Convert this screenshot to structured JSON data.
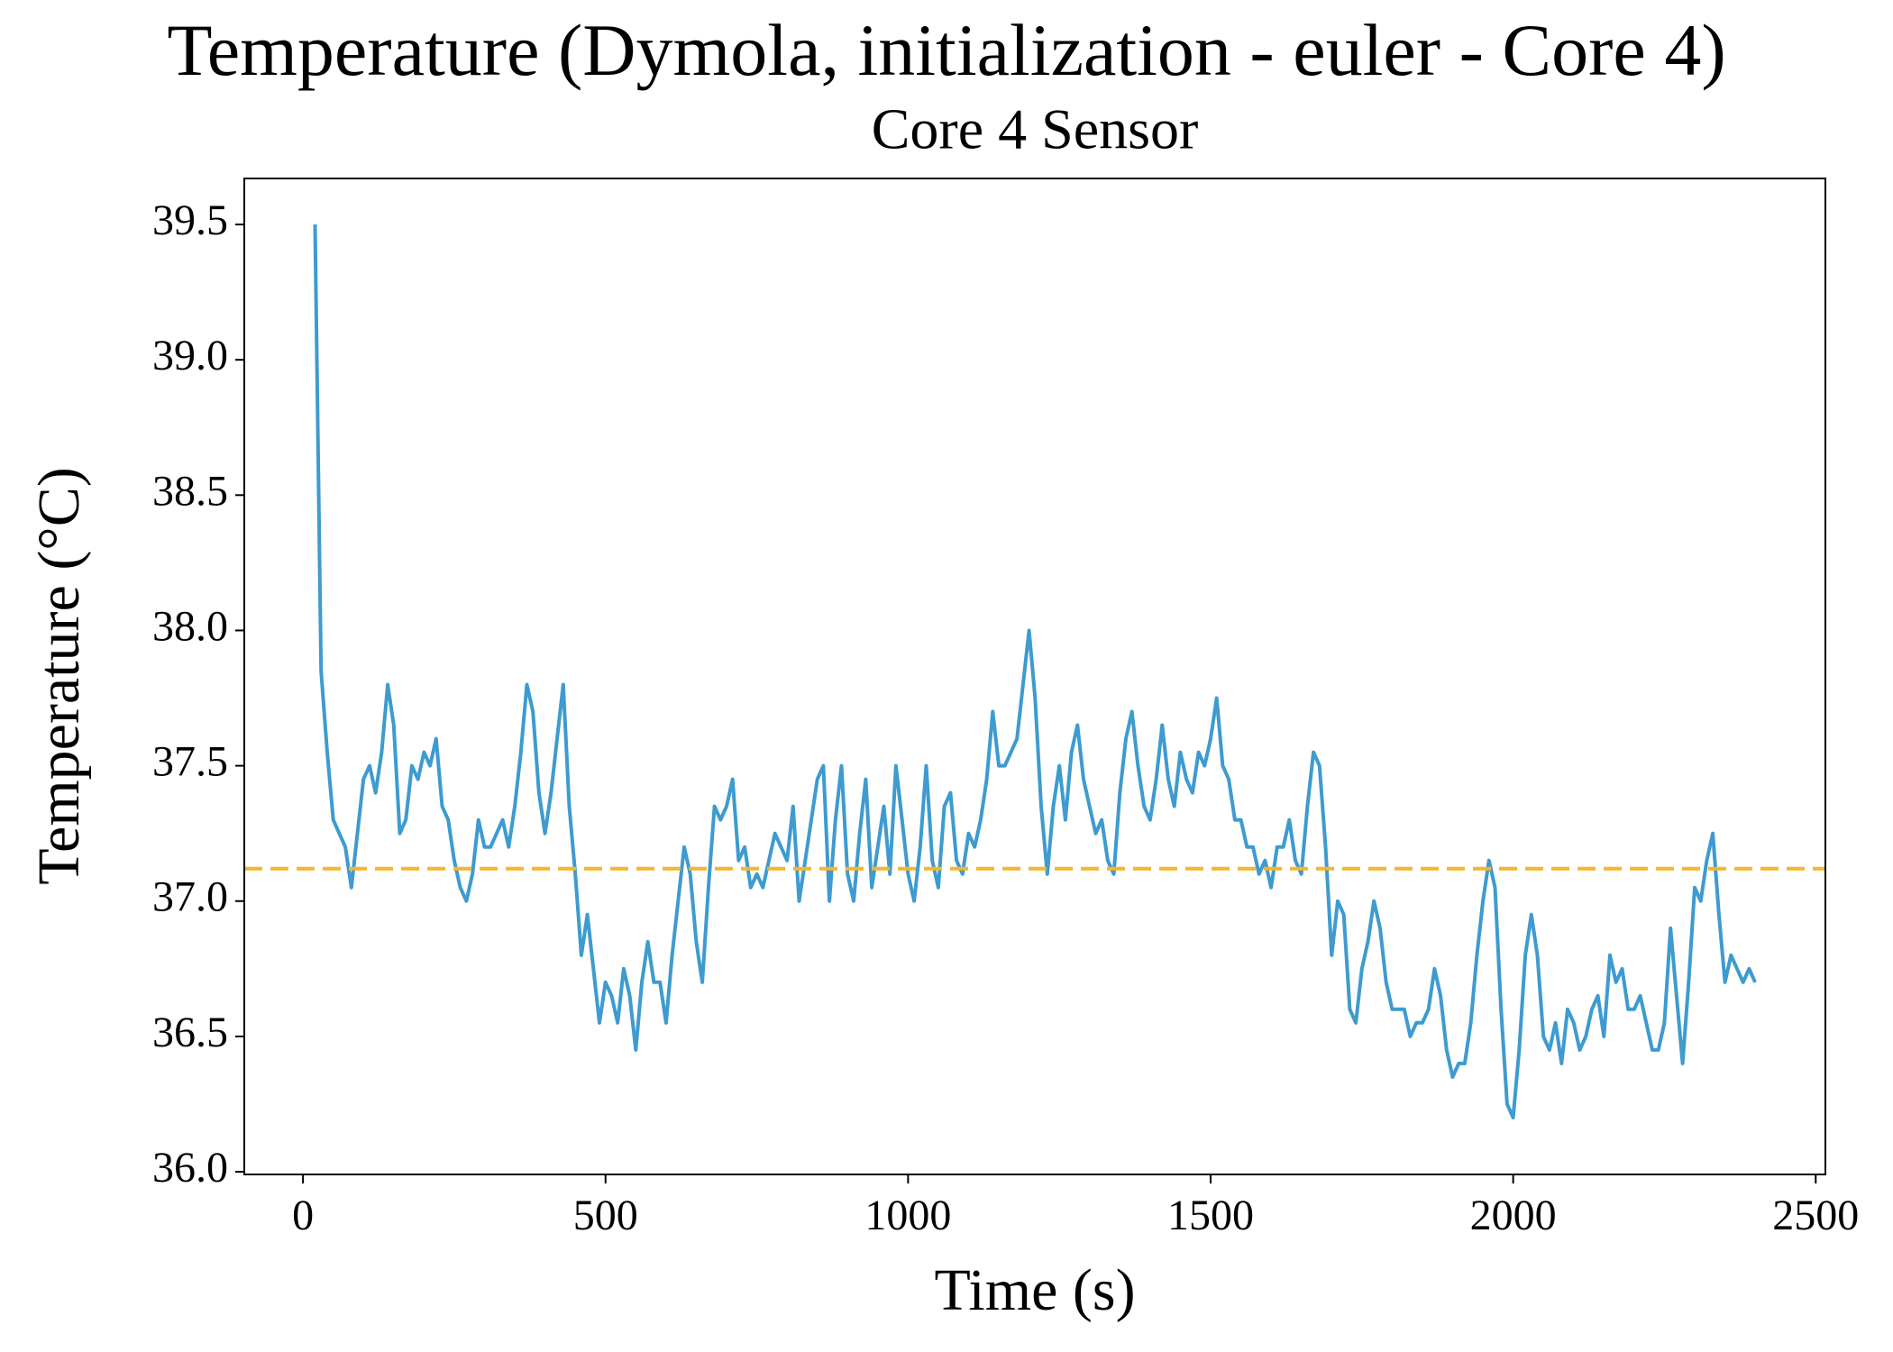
{
  "chart_data": {
    "type": "line",
    "title": "Temperature (Dymola, initialization - euler - Core 4)",
    "subtitle": "Core 4 Sensor",
    "x_label": "Time (s)",
    "y_label": "Temperature (°C)",
    "xlim": [
      -97,
      2516
    ],
    "ylim": [
      35.99,
      39.67
    ],
    "xticks": [
      0,
      500,
      1000,
      1500,
      2000,
      2500
    ],
    "yticks": [
      {
        "value": 36,
        "label": "36.0"
      },
      36.5,
      {
        "value": 37,
        "label": "37.0"
      },
      37.5,
      {
        "value": 38,
        "label": "38.0"
      },
      38.5,
      {
        "value": 39,
        "label": "39.0"
      },
      39.5
    ],
    "reference_line": {
      "value": 37.12,
      "color": "#f5b52e"
    },
    "x": [
      20,
      30,
      40,
      50,
      60,
      70,
      80,
      90,
      100,
      110,
      120,
      130,
      140,
      150,
      160,
      170,
      180,
      190,
      200,
      210,
      220,
      230,
      240,
      250,
      260,
      270,
      280,
      290,
      300,
      310,
      320,
      330,
      340,
      350,
      360,
      370,
      380,
      390,
      400,
      410,
      420,
      430,
      440,
      450,
      460,
      470,
      480,
      490,
      500,
      510,
      520,
      530,
      540,
      550,
      560,
      570,
      580,
      590,
      600,
      610,
      620,
      630,
      640,
      650,
      660,
      670,
      680,
      690,
      700,
      710,
      720,
      730,
      740,
      750,
      760,
      770,
      780,
      790,
      800,
      810,
      820,
      830,
      840,
      850,
      860,
      870,
      880,
      890,
      900,
      910,
      920,
      930,
      940,
      950,
      960,
      970,
      980,
      990,
      1000,
      1010,
      1020,
      1030,
      1040,
      1050,
      1060,
      1070,
      1080,
      1090,
      1100,
      1110,
      1120,
      1130,
      1140,
      1150,
      1160,
      1170,
      1180,
      1190,
      1200,
      1210,
      1220,
      1230,
      1240,
      1250,
      1260,
      1270,
      1280,
      1290,
      1300,
      1310,
      1320,
      1330,
      1340,
      1350,
      1360,
      1370,
      1380,
      1390,
      1400,
      1410,
      1420,
      1430,
      1440,
      1450,
      1460,
      1470,
      1480,
      1490,
      1500,
      1510,
      1520,
      1530,
      1540,
      1550,
      1560,
      1570,
      1580,
      1590,
      1600,
      1610,
      1620,
      1630,
      1640,
      1650,
      1660,
      1670,
      1680,
      1690,
      1700,
      1710,
      1720,
      1730,
      1740,
      1750,
      1760,
      1770,
      1780,
      1790,
      1800,
      1810,
      1820,
      1830,
      1840,
      1850,
      1860,
      1870,
      1880,
      1890,
      1900,
      1910,
      1920,
      1930,
      1940,
      1950,
      1960,
      1970,
      1980,
      1990,
      2000,
      2010,
      2020,
      2030,
      2040,
      2050,
      2060,
      2070,
      2080,
      2090,
      2100,
      2110,
      2120,
      2130,
      2140,
      2150,
      2160,
      2170,
      2180,
      2190,
      2200,
      2210,
      2220,
      2230,
      2240,
      2250,
      2260,
      2270,
      2280,
      2290,
      2300,
      2310,
      2320,
      2330,
      2340,
      2350,
      2360,
      2370,
      2380,
      2390,
      2400
    ],
    "series": [
      {
        "name": "Core 4 Sensor",
        "color": "#3d9bd0",
        "values": [
          39.5,
          37.85,
          37.55,
          37.3,
          37.25,
          37.2,
          37.05,
          37.25,
          37.45,
          37.5,
          37.4,
          37.55,
          37.8,
          37.65,
          37.25,
          37.3,
          37.5,
          37.45,
          37.55,
          37.5,
          37.6,
          37.35,
          37.3,
          37.15,
          37.05,
          37.0,
          37.1,
          37.3,
          37.2,
          37.2,
          37.25,
          37.3,
          37.2,
          37.35,
          37.55,
          37.8,
          37.7,
          37.4,
          37.25,
          37.4,
          37.6,
          37.8,
          37.35,
          37.1,
          36.8,
          36.95,
          36.75,
          36.55,
          36.7,
          36.65,
          36.55,
          36.75,
          36.65,
          36.45,
          36.7,
          36.85,
          36.7,
          36.7,
          36.55,
          36.8,
          37.0,
          37.2,
          37.1,
          36.85,
          36.7,
          37.05,
          37.35,
          37.3,
          37.35,
          37.45,
          37.15,
          37.2,
          37.05,
          37.1,
          37.05,
          37.15,
          37.25,
          37.2,
          37.15,
          37.35,
          37.0,
          37.15,
          37.3,
          37.45,
          37.5,
          37.0,
          37.3,
          37.5,
          37.1,
          37.0,
          37.25,
          37.45,
          37.05,
          37.2,
          37.35,
          37.1,
          37.5,
          37.3,
          37.1,
          37.0,
          37.2,
          37.5,
          37.15,
          37.05,
          37.35,
          37.4,
          37.15,
          37.1,
          37.25,
          37.2,
          37.3,
          37.45,
          37.7,
          37.5,
          37.5,
          37.55,
          37.6,
          37.8,
          38.0,
          37.75,
          37.35,
          37.1,
          37.35,
          37.5,
          37.3,
          37.55,
          37.65,
          37.45,
          37.35,
          37.25,
          37.3,
          37.15,
          37.1,
          37.4,
          37.6,
          37.7,
          37.5,
          37.35,
          37.3,
          37.45,
          37.65,
          37.45,
          37.35,
          37.55,
          37.45,
          37.4,
          37.55,
          37.5,
          37.6,
          37.75,
          37.5,
          37.45,
          37.3,
          37.3,
          37.2,
          37.2,
          37.1,
          37.15,
          37.05,
          37.2,
          37.2,
          37.3,
          37.15,
          37.1,
          37.35,
          37.55,
          37.5,
          37.2,
          36.8,
          37.0,
          36.95,
          36.6,
          36.55,
          36.75,
          36.85,
          37.0,
          36.9,
          36.7,
          36.6,
          36.6,
          36.6,
          36.5,
          36.55,
          36.55,
          36.6,
          36.75,
          36.65,
          36.45,
          36.35,
          36.4,
          36.4,
          36.55,
          36.8,
          37.0,
          37.15,
          37.05,
          36.6,
          36.25,
          36.2,
          36.45,
          36.8,
          36.95,
          36.8,
          36.5,
          36.45,
          36.55,
          36.4,
          36.6,
          36.55,
          36.45,
          36.5,
          36.6,
          36.65,
          36.5,
          36.8,
          36.7,
          36.75,
          36.6,
          36.6,
          36.65,
          36.55,
          36.45,
          36.45,
          36.55,
          36.9,
          36.65,
          36.4,
          36.7,
          37.05,
          37.0,
          37.15,
          37.25,
          36.95,
          36.7,
          36.8,
          36.75,
          36.7,
          36.75,
          36.7
        ]
      }
    ]
  }
}
